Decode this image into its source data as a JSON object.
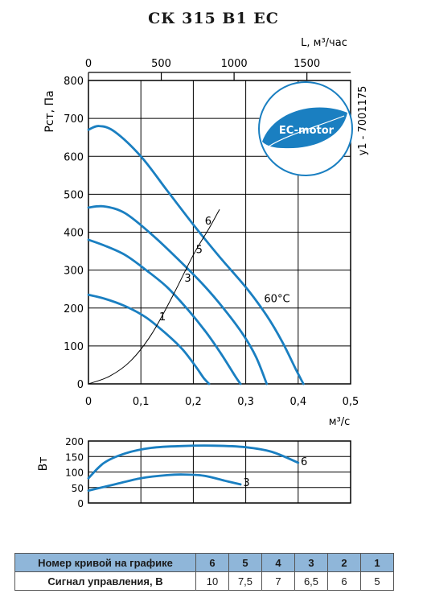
{
  "title": "СК 315 В1 ЕС",
  "doc_code": "y1 - 7001175",
  "badge": "EC-motor",
  "colors": {
    "curve": "#1a7fc1",
    "grid": "#000000",
    "table_header": "#8fb6d9",
    "badge": "#1a7fc1"
  },
  "chart_data": [
    {
      "type": "line",
      "name": "pressure",
      "ylabel": "Рст, Па",
      "xlabel": "м³/с",
      "top_axis_label": "L, м³/час",
      "xlim": [
        0,
        0.5
      ],
      "ylim": [
        0,
        800
      ],
      "x_ticks": [
        0,
        0.1,
        0.2,
        0.3,
        0.4,
        0.5
      ],
      "x_tick_labels": [
        "0",
        "0,1",
        "0,2",
        "0,3",
        "0,4",
        "0,5"
      ],
      "y_ticks": [
        0,
        100,
        200,
        300,
        400,
        500,
        600,
        700,
        800
      ],
      "top_ticks": [
        0,
        500,
        1000,
        1500
      ],
      "top_tick_labels": [
        "0",
        "500",
        "1000",
        "1500"
      ],
      "top_per_unit": 3600,
      "grid": true,
      "series": [
        {
          "name": "6",
          "points": [
            [
              0,
              670
            ],
            [
              0.02,
              680
            ],
            [
              0.05,
              665
            ],
            [
              0.1,
              600
            ],
            [
              0.15,
              510
            ],
            [
              0.2,
              420
            ],
            [
              0.25,
              335
            ],
            [
              0.3,
              255
            ],
            [
              0.34,
              180
            ],
            [
              0.37,
              110
            ],
            [
              0.395,
              40
            ],
            [
              0.41,
              0
            ]
          ]
        },
        {
          "name": "5",
          "points": [
            [
              0,
              465
            ],
            [
              0.03,
              468
            ],
            [
              0.07,
              450
            ],
            [
              0.12,
              395
            ],
            [
              0.17,
              330
            ],
            [
              0.22,
              260
            ],
            [
              0.26,
              195
            ],
            [
              0.295,
              130
            ],
            [
              0.32,
              70
            ],
            [
              0.34,
              0
            ]
          ]
        },
        {
          "name": "3",
          "points": [
            [
              0,
              380
            ],
            [
              0.03,
              365
            ],
            [
              0.07,
              340
            ],
            [
              0.11,
              300
            ],
            [
              0.15,
              255
            ],
            [
              0.19,
              195
            ],
            [
              0.225,
              135
            ],
            [
              0.255,
              75
            ],
            [
              0.28,
              20
            ],
            [
              0.29,
              0
            ]
          ]
        },
        {
          "name": "1",
          "points": [
            [
              0,
              235
            ],
            [
              0.03,
              225
            ],
            [
              0.07,
              205
            ],
            [
              0.11,
              175
            ],
            [
              0.15,
              130
            ],
            [
              0.18,
              90
            ],
            [
              0.205,
              45
            ],
            [
              0.22,
              15
            ],
            [
              0.23,
              0
            ]
          ]
        }
      ],
      "system_curve": {
        "points": [
          [
            0,
            0
          ],
          [
            0.04,
            20
          ],
          [
            0.08,
            60
          ],
          [
            0.12,
            130
          ],
          [
            0.16,
            230
          ],
          [
            0.2,
            340
          ],
          [
            0.23,
            410
          ],
          [
            0.25,
            460
          ]
        ]
      },
      "curve_labels": [
        {
          "text": "6",
          "x": 0.222,
          "y": 420
        },
        {
          "text": "5",
          "x": 0.205,
          "y": 345
        },
        {
          "text": "3",
          "x": 0.183,
          "y": 270
        },
        {
          "text": "1",
          "x": 0.135,
          "y": 168
        }
      ],
      "annotation": {
        "text": "60°C",
        "x": 0.335,
        "y": 215
      }
    },
    {
      "type": "line",
      "name": "power",
      "ylabel": "Вт",
      "xlim": [
        0,
        0.5
      ],
      "ylim": [
        0,
        200
      ],
      "y_ticks": [
        0,
        50,
        100,
        150,
        200
      ],
      "grid": true,
      "series": [
        {
          "name": "6",
          "points": [
            [
              0,
              80
            ],
            [
              0.03,
              130
            ],
            [
              0.07,
              160
            ],
            [
              0.12,
              178
            ],
            [
              0.18,
              184
            ],
            [
              0.24,
              185
            ],
            [
              0.3,
              180
            ],
            [
              0.35,
              165
            ],
            [
              0.4,
              130
            ]
          ]
        },
        {
          "name": "3",
          "points": [
            [
              0,
              40
            ],
            [
              0.05,
              60
            ],
            [
              0.1,
              80
            ],
            [
              0.15,
              90
            ],
            [
              0.18,
              92
            ],
            [
              0.22,
              88
            ],
            [
              0.26,
              72
            ],
            [
              0.29,
              60
            ]
          ]
        }
      ],
      "curve_labels": [
        {
          "text": "6",
          "x": 0.405,
          "y": 122
        },
        {
          "text": "3",
          "x": 0.295,
          "y": 55
        }
      ]
    }
  ],
  "control_table": {
    "header_label": "Номер кривой на графике",
    "row_label": "Сигнал управления, В",
    "curves": [
      "6",
      "5",
      "4",
      "3",
      "2",
      "1"
    ],
    "signals": [
      "10",
      "7,5",
      "7",
      "6,5",
      "6",
      "5"
    ]
  }
}
